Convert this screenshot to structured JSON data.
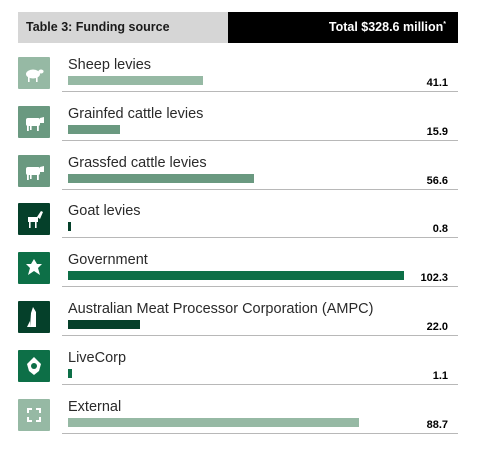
{
  "header": {
    "title": "Table 3: Funding source",
    "total": "Total $328.6 million",
    "total_mark": "*"
  },
  "chart_data": {
    "type": "bar",
    "orientation": "horizontal",
    "categories": [
      "Sheep levies",
      "Grainfed cattle levies",
      "Grassfed cattle levies",
      "Goat levies",
      "Government",
      "Australian Meat Processor Corporation (AMPC)",
      "LiveCorp",
      "External"
    ],
    "values": [
      41.1,
      15.9,
      56.6,
      0.8,
      102.3,
      22.0,
      1.1,
      88.7
    ],
    "value_labels": [
      "41.1",
      "15.9",
      "56.6",
      "0.8",
      "102.3",
      "22.0",
      "1.1",
      "88.7"
    ],
    "icons": [
      "sheep-icon",
      "cattle-icon",
      "cattle-icon",
      "goat-icon",
      "government-icon",
      "processor-icon",
      "livecorp-icon",
      "external-icon"
    ],
    "bar_colors": [
      "#96b9a4",
      "#6a9980",
      "#6a9980",
      "#05402a",
      "#0d6f47",
      "#05402a",
      "#0d6f47",
      "#96b9a4"
    ],
    "icon_colors": [
      "#96b9a4",
      "#6a9980",
      "#6a9980",
      "#05402a",
      "#0d6f47",
      "#05402a",
      "#0d6f47",
      "#96b9a4"
    ],
    "xlim": [
      0,
      102.3
    ],
    "title": "Table 3: Funding source",
    "xlabel": "",
    "ylabel": ""
  }
}
